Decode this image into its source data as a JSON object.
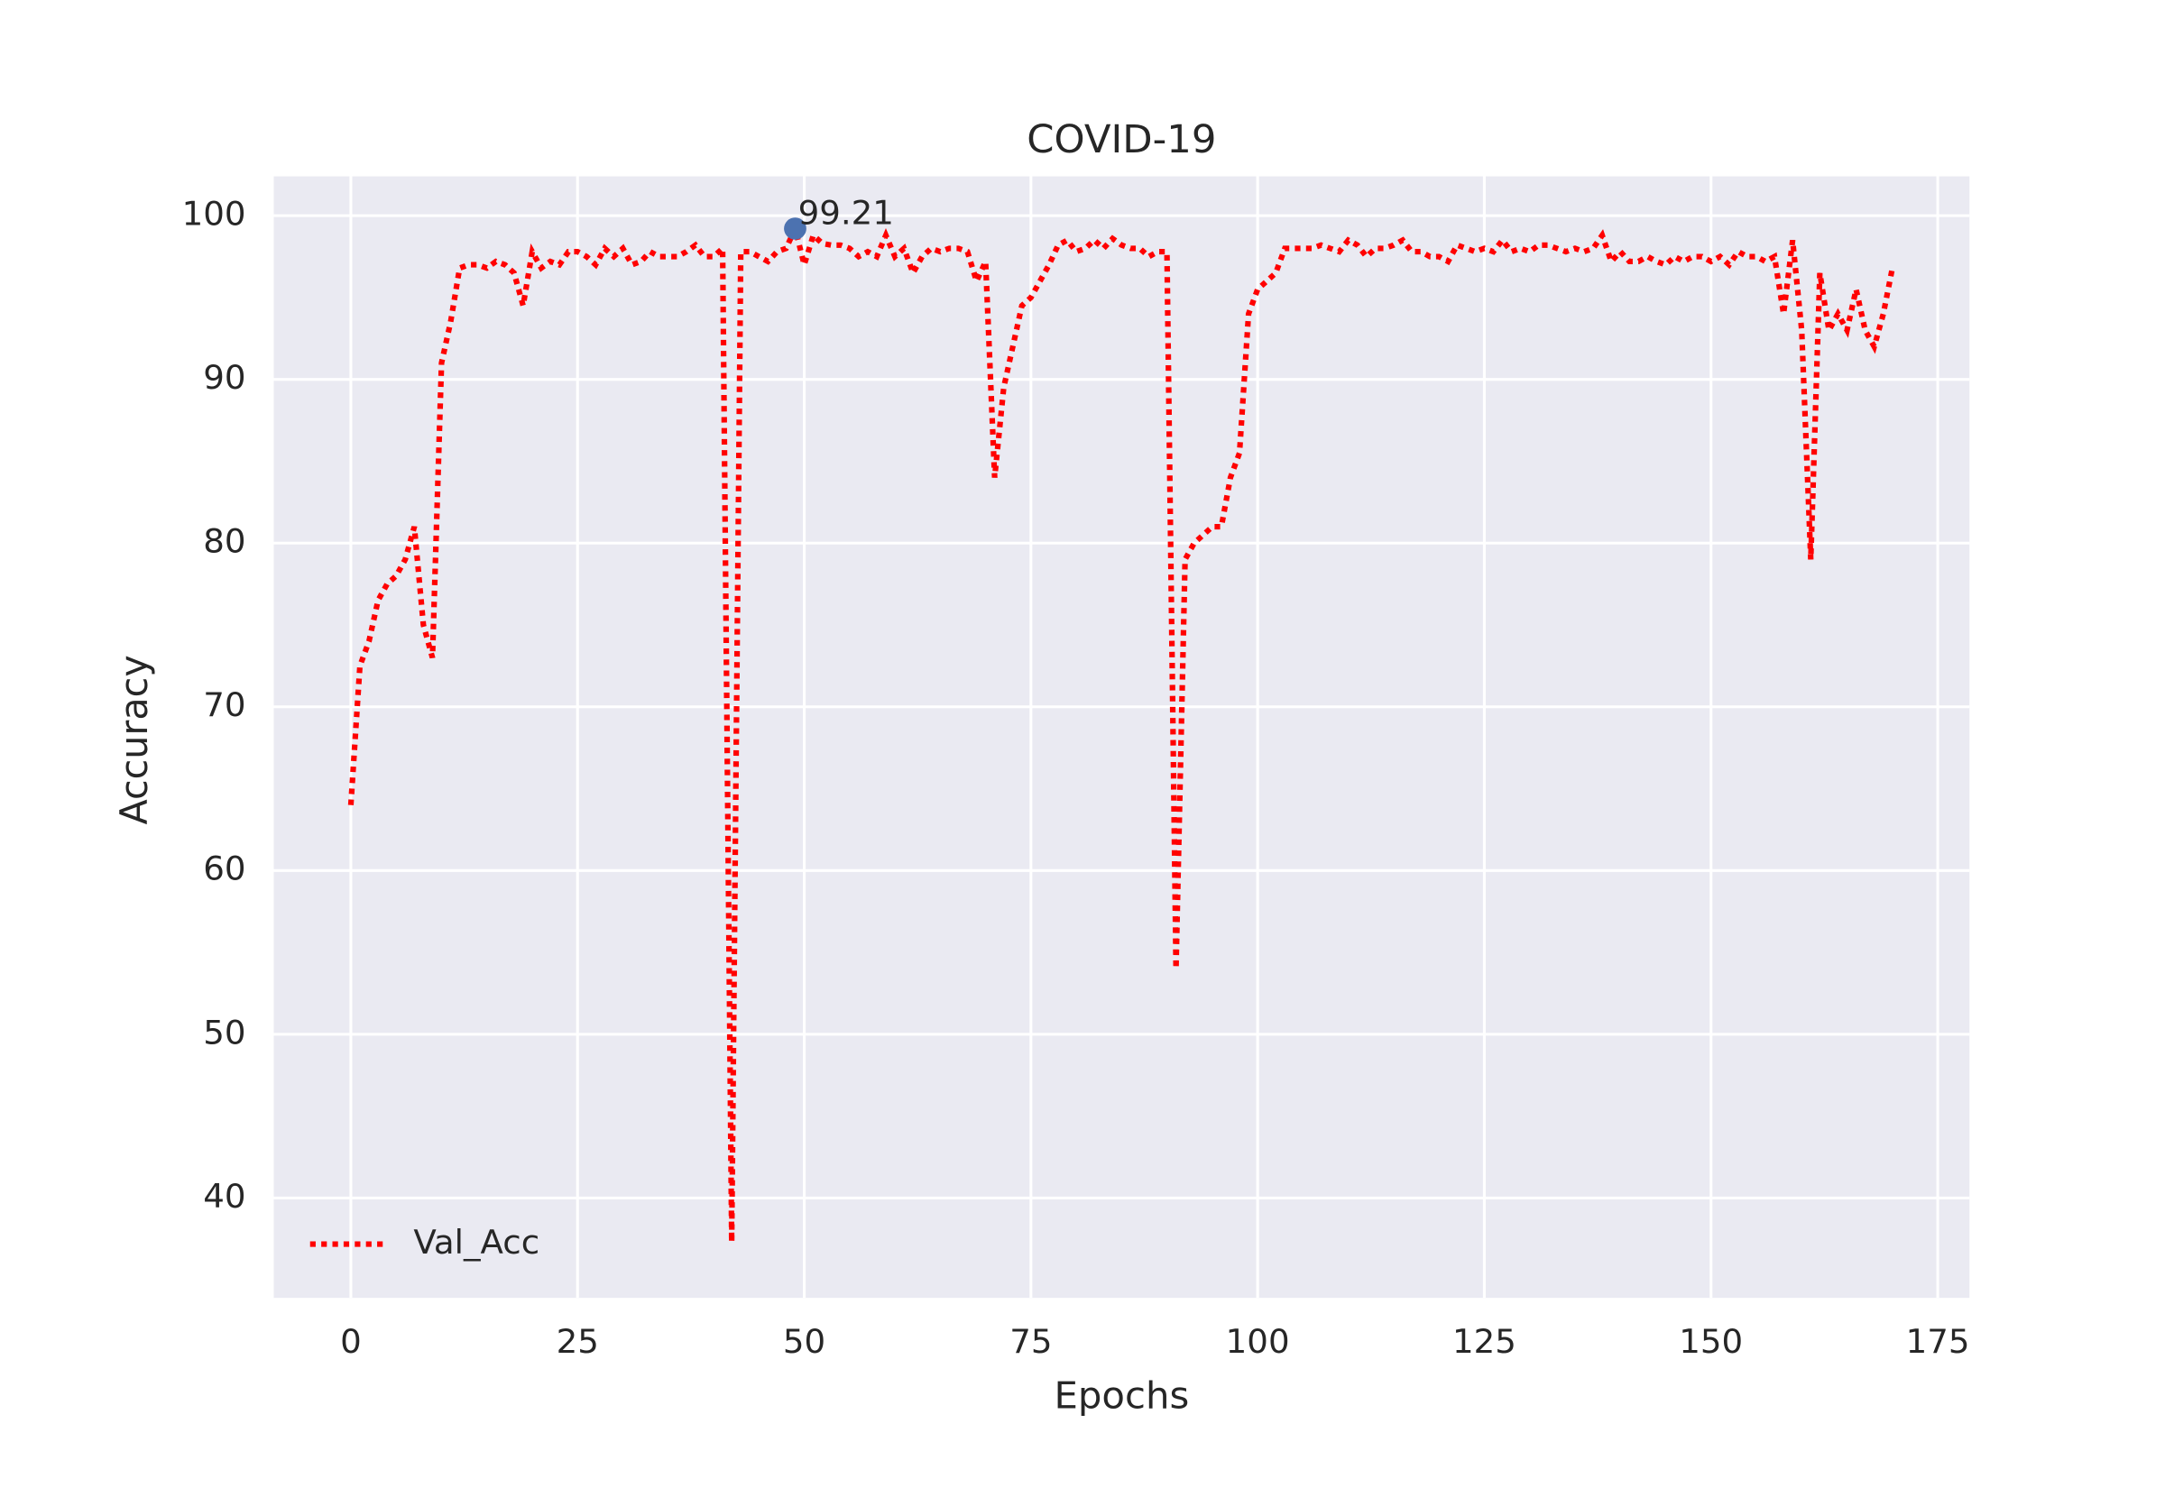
{
  "chart_data": {
    "type": "line",
    "title": "COVID-19",
    "x_label": "Epochs",
    "y_label": "Accuracy",
    "x": [
      0,
      1,
      2,
      3,
      4,
      5,
      6,
      7,
      8,
      9,
      10,
      11,
      12,
      13,
      14,
      15,
      16,
      17,
      18,
      19,
      20,
      21,
      22,
      23,
      24,
      25,
      26,
      27,
      28,
      29,
      30,
      31,
      32,
      33,
      34,
      35,
      36,
      37,
      38,
      39,
      40,
      41,
      42,
      43,
      44,
      45,
      46,
      47,
      48,
      49,
      50,
      51,
      52,
      53,
      54,
      55,
      56,
      57,
      58,
      59,
      60,
      61,
      62,
      63,
      64,
      65,
      66,
      67,
      68,
      69,
      70,
      71,
      72,
      73,
      74,
      75,
      76,
      77,
      78,
      79,
      80,
      81,
      82,
      83,
      84,
      85,
      86,
      87,
      88,
      89,
      90,
      91,
      92,
      93,
      94,
      95,
      96,
      97,
      98,
      99,
      100,
      101,
      102,
      103,
      104,
      105,
      106,
      107,
      108,
      109,
      110,
      111,
      112,
      113,
      114,
      115,
      116,
      117,
      118,
      119,
      120,
      121,
      122,
      123,
      124,
      125,
      126,
      127,
      128,
      129,
      130,
      131,
      132,
      133,
      134,
      135,
      136,
      137,
      138,
      139,
      140,
      141,
      142,
      143,
      144,
      145,
      146,
      147,
      148,
      149,
      150,
      151,
      152,
      153,
      154,
      155,
      156,
      157,
      158,
      159,
      160,
      161,
      162,
      163,
      164,
      165,
      166,
      167,
      168,
      169,
      170
    ],
    "series": [
      {
        "name": "Val_Acc",
        "color": "#ff0000",
        "values": [
          64,
          72.5,
          74,
          76.5,
          77.5,
          78,
          79,
          81,
          75,
          73,
          91,
          93.5,
          96.8,
          97,
          97,
          96.8,
          97.2,
          97,
          96.5,
          94.5,
          97.8,
          96.8,
          97.2,
          97,
          97.8,
          97.8,
          97.5,
          97,
          98,
          97.5,
          98,
          97,
          97.2,
          97.8,
          97.5,
          97.5,
          97.5,
          97.8,
          98.2,
          97.5,
          97.5,
          98,
          37.3,
          97.8,
          97.8,
          97.5,
          97.2,
          97.8,
          98,
          99.21,
          97,
          98.8,
          98.3,
          98.2,
          98.2,
          98,
          97.5,
          97.8,
          97.5,
          98.8,
          97.5,
          98,
          96.5,
          97.5,
          98,
          97.8,
          98,
          98,
          97.8,
          96,
          97.2,
          84,
          89.5,
          92,
          94.5,
          95,
          96,
          97,
          98.2,
          98.5,
          97.8,
          98,
          98.5,
          98,
          98.6,
          98.2,
          98,
          98,
          97.5,
          97.8,
          97.8,
          54,
          79,
          80,
          80.5,
          81,
          81,
          84,
          85.5,
          94,
          95.5,
          96,
          96.5,
          98,
          98,
          98,
          98,
          98.2,
          98,
          97.8,
          98.5,
          98.2,
          97.5,
          98,
          98,
          98.2,
          98.5,
          97.8,
          97.8,
          97.5,
          97.5,
          97.2,
          98.2,
          98,
          97.8,
          98,
          97.8,
          98.5,
          97.8,
          98,
          97.8,
          98.2,
          98.2,
          98,
          97.8,
          98,
          97.8,
          98,
          98.8,
          97.2,
          97.8,
          97.2,
          97.2,
          97.5,
          97.2,
          97,
          97.5,
          97.2,
          97.5,
          97.5,
          97.2,
          97.5,
          97,
          97.8,
          97.5,
          97.5,
          97.2,
          97.5,
          94,
          98.5,
          93,
          79,
          96.5,
          93,
          94,
          93,
          95.5,
          93,
          92,
          94,
          96.8
        ]
      }
    ],
    "annotations": [
      {
        "x": 49,
        "y": 99.21,
        "label": "99.21",
        "color": "#4c72b0"
      }
    ],
    "xlim": [
      -8.5,
      178.5
    ],
    "ylim": [
      33.9,
      102.4
    ],
    "xticks": [
      0,
      25,
      50,
      75,
      100,
      125,
      150,
      175
    ],
    "yticks": [
      40,
      50,
      60,
      70,
      80,
      90,
      100
    ],
    "grid": true,
    "legend": "lower left"
  }
}
